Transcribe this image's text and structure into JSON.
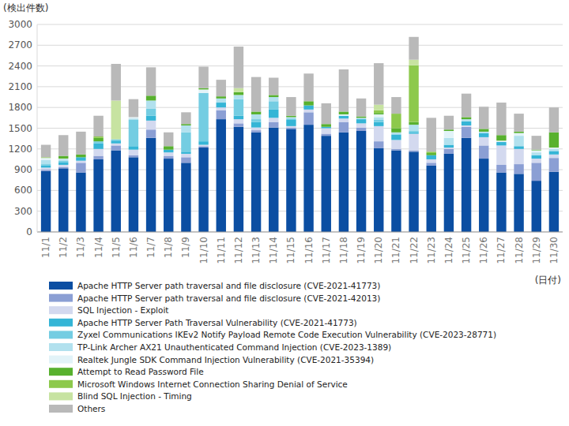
{
  "chart_data": {
    "type": "bar",
    "stacked": true,
    "grid": true,
    "legend": "bottom",
    "y_label": "(検出件数)",
    "x_label": "(日付)",
    "ylim": [
      0,
      3000
    ],
    "yticks": [
      0,
      300,
      600,
      900,
      1200,
      1500,
      1800,
      2100,
      2400,
      2700,
      3000
    ],
    "categories": [
      "11/1",
      "11/2",
      "11/3",
      "11/4",
      "11/5",
      "11/6",
      "11/7",
      "11/8",
      "11/9",
      "11/10",
      "11/11",
      "11/12",
      "11/13",
      "11/14",
      "11/15",
      "11/16",
      "11/17",
      "11/18",
      "11/19",
      "11/20",
      "11/21",
      "11/22",
      "11/23",
      "11/24",
      "11/25",
      "11/26",
      "11/27",
      "11/28",
      "11/29",
      "11/30"
    ],
    "series": [
      {
        "name": "Apache HTTP Server path traversal and file disclosure (CVE-2021-41773)",
        "color": "#0b4ea2",
        "values": [
          880,
          920,
          860,
          1050,
          1180,
          1080,
          1360,
          1060,
          1000,
          1220,
          1630,
          1520,
          1440,
          1510,
          1490,
          1550,
          1390,
          1440,
          1460,
          1210,
          1180,
          1160,
          960,
          1130,
          1360,
          1060,
          860,
          840,
          740,
          870
        ]
      },
      {
        "name": "Apache HTTP Server path traversal and file disclosure (CVE-2021-42013)",
        "color": "#8b9fd4",
        "values": [
          20,
          20,
          140,
          50,
          70,
          30,
          120,
          40,
          80,
          20,
          130,
          50,
          30,
          80,
          20,
          180,
          30,
          150,
          50,
          100,
          20,
          20,
          40,
          70,
          160,
          190,
          110,
          140,
          260,
          200
        ]
      },
      {
        "name": "SQL Injection - Exploit",
        "color": "#d3d9ef",
        "values": [
          30,
          30,
          30,
          100,
          30,
          80,
          130,
          50,
          50,
          20,
          40,
          60,
          40,
          60,
          20,
          40,
          80,
          50,
          60,
          220,
          130,
          240,
          50,
          20,
          20,
          120,
          280,
          220,
          60,
          50
        ]
      },
      {
        "name": "Apache HTTP Server Path Traversal Vulnerability (CVE-2021-41773)",
        "color": "#35b5d6",
        "values": [
          30,
          40,
          50,
          80,
          40,
          50,
          70,
          40,
          30,
          50,
          70,
          50,
          80,
          120,
          90,
          60,
          20,
          40,
          60,
          60,
          80,
          20,
          60,
          40,
          60,
          60,
          50,
          40,
          50,
          50
        ]
      },
      {
        "name": "Zyxel Communications IKEv2 Notify Payload Remote Code Execution Vulnerability (CVE-2023-28771)",
        "color": "#74cde2",
        "values": [
          20,
          20,
          0,
          30,
          20,
          380,
          100,
          0,
          280,
          700,
          0,
          240,
          40,
          120,
          20,
          0,
          0,
          0,
          0,
          30,
          0,
          20,
          0,
          0,
          0,
          0,
          0,
          0,
          0,
          0
        ]
      },
      {
        "name": "TP-Link Archer AX21 Unauthenticated Command Injection (CVE-2023-1389)",
        "color": "#b2e1ee",
        "values": [
          60,
          20,
          0,
          0,
          0,
          20,
          120,
          0,
          100,
          0,
          60,
          60,
          70,
          60,
          20,
          0,
          0,
          0,
          20,
          40,
          30,
          90,
          0,
          100,
          30,
          20,
          0,
          150,
          40,
          30
        ]
      },
      {
        "name": "Realtek Jungle SDK Command Injection Vulnerability (CVE-2021-35394)",
        "color": "#e2f3f8",
        "values": [
          30,
          10,
          0,
          0,
          0,
          20,
          0,
          0,
          0,
          50,
          0,
          0,
          0,
          0,
          0,
          0,
          0,
          20,
          0,
          40,
          0,
          0,
          0,
          100,
          0,
          0,
          20,
          40,
          30,
          20
        ]
      },
      {
        "name": "Attempt to Read Password File",
        "color": "#58b12e",
        "values": [
          0,
          40,
          40,
          50,
          0,
          0,
          70,
          50,
          20,
          20,
          30,
          40,
          40,
          30,
          20,
          60,
          40,
          40,
          20,
          20,
          60,
          40,
          30,
          20,
          30,
          40,
          80,
          20,
          10,
          220
        ]
      },
      {
        "name": "Microsoft Windows Internet Connection Sharing Denial of Service",
        "color": "#8dc94c",
        "values": [
          10,
          0,
          0,
          20,
          0,
          0,
          0,
          0,
          0,
          0,
          0,
          0,
          0,
          0,
          0,
          0,
          0,
          0,
          0,
          40,
          210,
          820,
          20,
          0,
          0,
          0,
          0,
          0,
          0,
          0
        ]
      },
      {
        "name": "Blind SQL Injection - Timing",
        "color": "#c7e3a1",
        "values": [
          0,
          0,
          0,
          0,
          560,
          0,
          0,
          0,
          0,
          0,
          0,
          60,
          0,
          0,
          0,
          0,
          0,
          0,
          0,
          80,
          0,
          80,
          0,
          0,
          0,
          0,
          0,
          0,
          0,
          0
        ]
      },
      {
        "name": "Others",
        "color": "#b9b9b9",
        "values": [
          180,
          300,
          330,
          300,
          530,
          260,
          410,
          200,
          170,
          310,
          240,
          600,
          500,
          250,
          270,
          400,
          300,
          610,
          260,
          600,
          240,
          330,
          490,
          200,
          340,
          320,
          470,
          260,
          200,
          360
        ]
      }
    ]
  }
}
